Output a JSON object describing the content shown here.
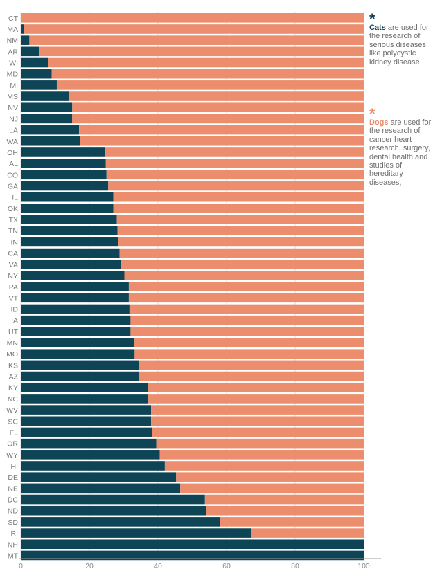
{
  "chart_data": {
    "type": "bar",
    "orientation": "horizontal",
    "stacked": true,
    "categories": [
      "CT",
      "MA",
      "NM",
      "AR",
      "WI",
      "MD",
      "MI",
      "MS",
      "NV",
      "NJ",
      "LA",
      "WA",
      "OH",
      "AL",
      "CO",
      "GA",
      "IL",
      "OK",
      "TX",
      "TN",
      "IN",
      "CA",
      "VA",
      "NY",
      "PA",
      "VT",
      "ID",
      "IA",
      "UT",
      "MN",
      "MO",
      "KS",
      "AZ",
      "KY",
      "NC",
      "WV",
      "SC",
      "FL",
      "OR",
      "WY",
      "HI",
      "DE",
      "NE",
      "DC",
      "ND",
      "SD",
      "RI",
      "NH",
      "MT"
    ],
    "series": [
      {
        "color": "#0d4456",
        "values": [
          0,
          1,
          2.5,
          5.5,
          8,
          9,
          10.5,
          14,
          15,
          15,
          17,
          17.2,
          24.5,
          24.8,
          25,
          25.5,
          27,
          27,
          28,
          28.2,
          28.4,
          28.8,
          29.2,
          30.2,
          31.5,
          31.5,
          31.7,
          32,
          32,
          33,
          33.2,
          34.5,
          34.5,
          37,
          37.2,
          38,
          38,
          38.2,
          39.5,
          40.5,
          42,
          45.3,
          46.5,
          53.7,
          54,
          58,
          67.2,
          100,
          100
        ]
      },
      {
        "color": "#ec8e6d",
        "values": [
          100,
          99,
          97.5,
          94.5,
          92,
          91,
          89.5,
          86,
          85,
          85,
          83,
          82.8,
          75.5,
          75.2,
          75,
          74.5,
          73,
          73,
          72,
          71.8,
          71.6,
          71.2,
          70.8,
          69.8,
          68.5,
          68.5,
          68.3,
          68,
          68,
          67,
          66.8,
          65.5,
          65.5,
          63,
          62.8,
          62,
          62,
          61.8,
          60.5,
          59.5,
          58,
          54.7,
          53.5,
          46.3,
          46,
          42,
          32.8,
          0,
          0
        ]
      }
    ],
    "x_ticks": [
      "0",
      "20",
      "40",
      "60",
      "80",
      "100"
    ],
    "xlim": [
      0,
      100
    ],
    "grid": true,
    "title": "",
    "xlabel": "",
    "ylabel": ""
  },
  "annotations": {
    "cats": {
      "star": "*",
      "name": "Cats",
      "text": "are used for the research of serious diseases like polycystic kidney disease",
      "color": "#0d4456"
    },
    "dogs": {
      "star": "*",
      "name": "Dogs",
      "text": "are used for the research of cancer heart research, surgery, dental health and studies of hereditary diseases,",
      "color": "#ec8e6d"
    }
  }
}
